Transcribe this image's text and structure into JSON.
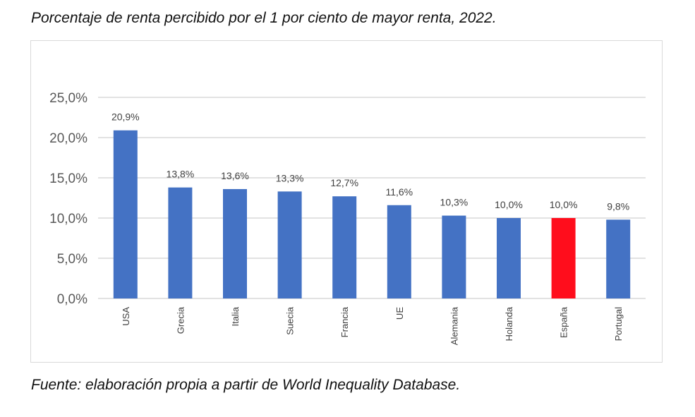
{
  "title": "Porcentaje de renta percibido por el 1 por ciento de mayor renta, 2022.",
  "source": "Fuente: elaboración propia a partir de World Inequality Database.",
  "chart_data": {
    "type": "bar",
    "title": "Porcentaje de renta percibido por el 1 por ciento de mayor renta, 2022.",
    "categories": [
      "USA",
      "Grecia",
      "Italia",
      "Suecia",
      "Francia",
      "UE",
      "Alemania",
      "Holanda",
      "España",
      "Portugal"
    ],
    "values": [
      20.9,
      13.8,
      13.6,
      13.3,
      12.7,
      11.6,
      10.3,
      10.0,
      10.0,
      9.8
    ],
    "data_labels": [
      "20,9%",
      "13,8%",
      "13,6%",
      "13,3%",
      "12,7%",
      "11,6%",
      "10,3%",
      "10,0%",
      "10,0%",
      "9,8%"
    ],
    "yticks": [
      0,
      5,
      10,
      15,
      20,
      25
    ],
    "ytick_labels": [
      "0,0%",
      "5,0%",
      "10,0%",
      "15,0%",
      "20,0%",
      "25,0%"
    ],
    "ylim": [
      0,
      25
    ],
    "grid": true,
    "colors": {
      "default": "#4472c4",
      "highlight": "#ff0d1c",
      "highlight_category": "España"
    }
  }
}
